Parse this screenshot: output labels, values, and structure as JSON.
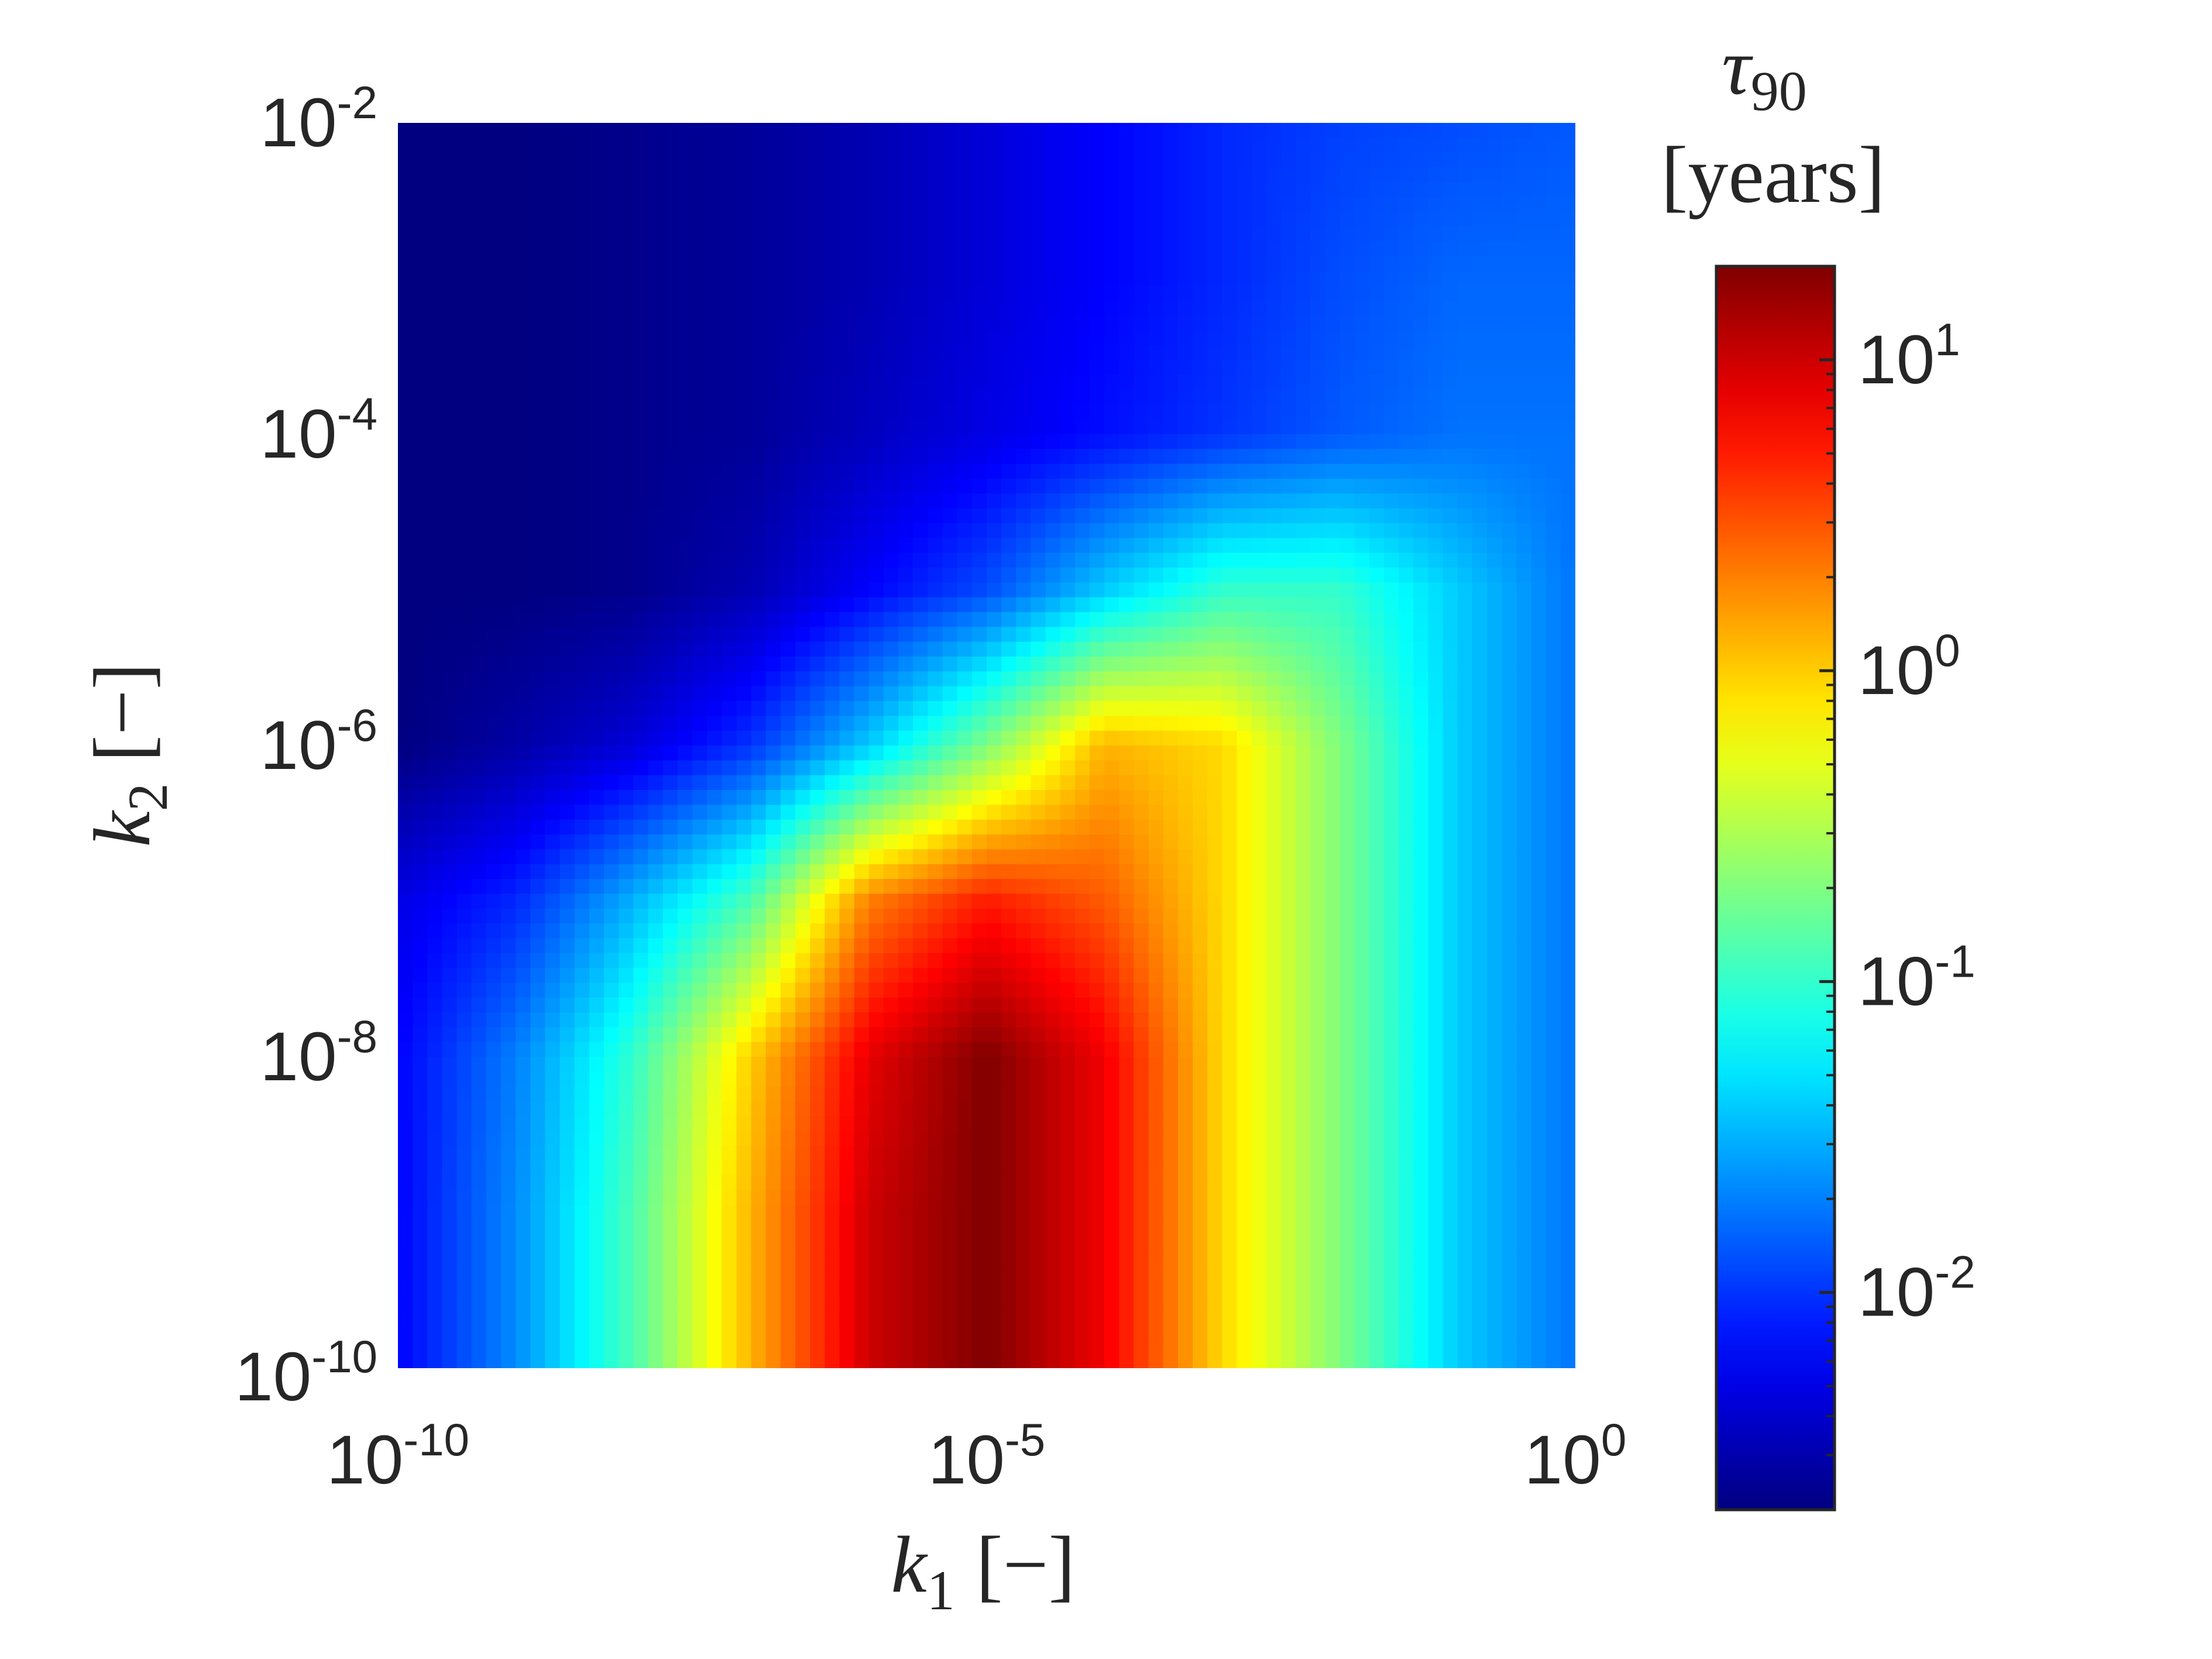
{
  "chart_data": {
    "type": "heatmap",
    "colormap": "jet",
    "x": {
      "scale": "log",
      "range": [
        1e-10,
        1
      ],
      "grid_log10": [
        -10,
        -9,
        -8,
        -7,
        -6,
        -5,
        -4,
        -3,
        -2,
        -1,
        0
      ],
      "ticks": [
        {
          "base": "10",
          "exp": "-10"
        },
        {
          "base": "10",
          "exp": "-5"
        },
        {
          "base": "10",
          "exp": "0"
        }
      ],
      "label": {
        "sym": "k",
        "sub": "1",
        "unit": "[−]"
      }
    },
    "y": {
      "scale": "log",
      "range": [
        1e-10,
        0.01
      ],
      "grid_log10": [
        -10,
        -9,
        -8,
        -7,
        -6,
        -5,
        -4,
        -3,
        -2
      ],
      "ticks": [
        {
          "base": "10",
          "exp": "-2"
        },
        {
          "base": "10",
          "exp": "-4"
        },
        {
          "base": "10",
          "exp": "-6"
        },
        {
          "base": "10",
          "exp": "-8"
        },
        {
          "base": "10",
          "exp": "-10"
        }
      ],
      "label": {
        "sym": "k",
        "sub": "2",
        "unit": "[−]"
      }
    },
    "colorbar": {
      "scale": "log",
      "range": [
        0.002,
        20
      ],
      "title_sym": "τ",
      "title_sub": "90",
      "title_unit": "[years]",
      "ticks": [
        {
          "base": "10",
          "exp": "1"
        },
        {
          "base": "10",
          "exp": "0"
        },
        {
          "base": "10",
          "exp": "-1"
        },
        {
          "base": "10",
          "exp": "-2"
        }
      ]
    },
    "z_log10_rows_top_to_bottom": [
      [
        -2.7,
        -2.7,
        -2.65,
        -2.6,
        -2.5,
        -2.35,
        -2.2,
        -2.05,
        -1.95,
        -1.9,
        -1.85
      ],
      [
        -2.7,
        -2.7,
        -2.65,
        -2.6,
        -2.5,
        -2.35,
        -2.2,
        -2.05,
        -1.9,
        -1.8,
        -1.8
      ],
      [
        -2.7,
        -2.7,
        -2.65,
        -2.6,
        -2.45,
        -2.3,
        -2.15,
        -2.0,
        -1.85,
        -1.75,
        -1.75
      ],
      [
        -2.7,
        -2.7,
        -2.65,
        -2.5,
        -2.2,
        -1.9,
        -1.4,
        -1.0,
        -1.0,
        -1.4,
        -1.75
      ],
      [
        -2.7,
        -2.55,
        -2.35,
        -2.0,
        -1.4,
        -0.7,
        0.1,
        -0.05,
        -0.7,
        -1.4,
        -1.75
      ],
      [
        -2.3,
        -2.05,
        -1.5,
        -0.9,
        0.3,
        0.7,
        0.45,
        -0.05,
        -0.7,
        -1.4,
        -1.75
      ],
      [
        -2.2,
        -1.7,
        -1.0,
        0.0,
        0.9,
        1.3,
        0.85,
        -0.05,
        -0.7,
        -1.4,
        -1.75
      ],
      [
        -2.2,
        -1.65,
        -0.9,
        0.1,
        1.0,
        1.3,
        0.85,
        -0.05,
        -0.7,
        -1.4,
        -1.75
      ],
      [
        -2.2,
        -1.65,
        -0.9,
        0.1,
        1.0,
        1.3,
        0.85,
        -0.05,
        -0.7,
        -1.4,
        -1.75
      ]
    ]
  }
}
